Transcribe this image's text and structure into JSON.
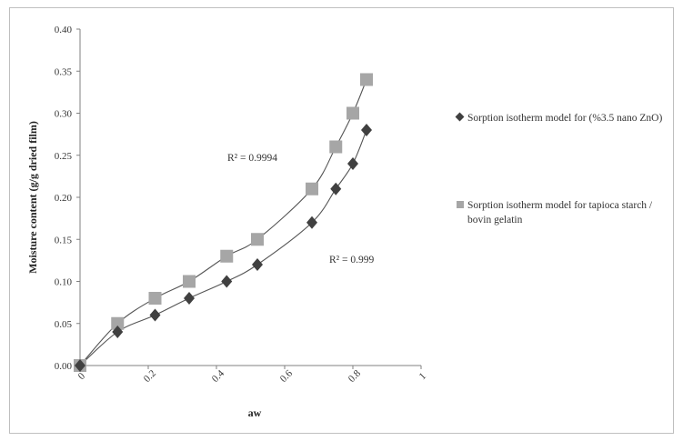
{
  "chart_data": {
    "type": "scatter",
    "xlabel": "aw",
    "ylabel": "Moisture content (g/g dried film)",
    "xlim": [
      0,
      1
    ],
    "ylim": [
      0,
      0.4
    ],
    "x_ticks": [
      "0",
      "0.2",
      "0.4",
      "0.6",
      "0.8",
      "1"
    ],
    "y_ticks": [
      "0.00",
      "0.05",
      "0.10",
      "0.15",
      "0.20",
      "0.25",
      "0.30",
      "0.35",
      "0.40"
    ],
    "grid": false,
    "legend_position": "right",
    "series": [
      {
        "name": "Sorption isotherm model for (%3.5 nano ZnO)",
        "marker": "diamond",
        "color": "#404040",
        "x": [
          0,
          0.11,
          0.22,
          0.32,
          0.43,
          0.52,
          0.68,
          0.75,
          0.8,
          0.84
        ],
        "y": [
          0.0,
          0.04,
          0.06,
          0.08,
          0.1,
          0.12,
          0.17,
          0.21,
          0.24,
          0.28
        ],
        "r2": "R² = 0.999"
      },
      {
        "name": "Sorption isotherm model for tapioca starch / bovin gelatin",
        "marker": "square",
        "color": "#a6a6a6",
        "x": [
          0,
          0.11,
          0.22,
          0.32,
          0.43,
          0.52,
          0.68,
          0.75,
          0.8,
          0.84
        ],
        "y": [
          0.0,
          0.05,
          0.08,
          0.1,
          0.13,
          0.15,
          0.21,
          0.26,
          0.3,
          0.34
        ],
        "r2": "R² = 0.9994"
      }
    ]
  }
}
